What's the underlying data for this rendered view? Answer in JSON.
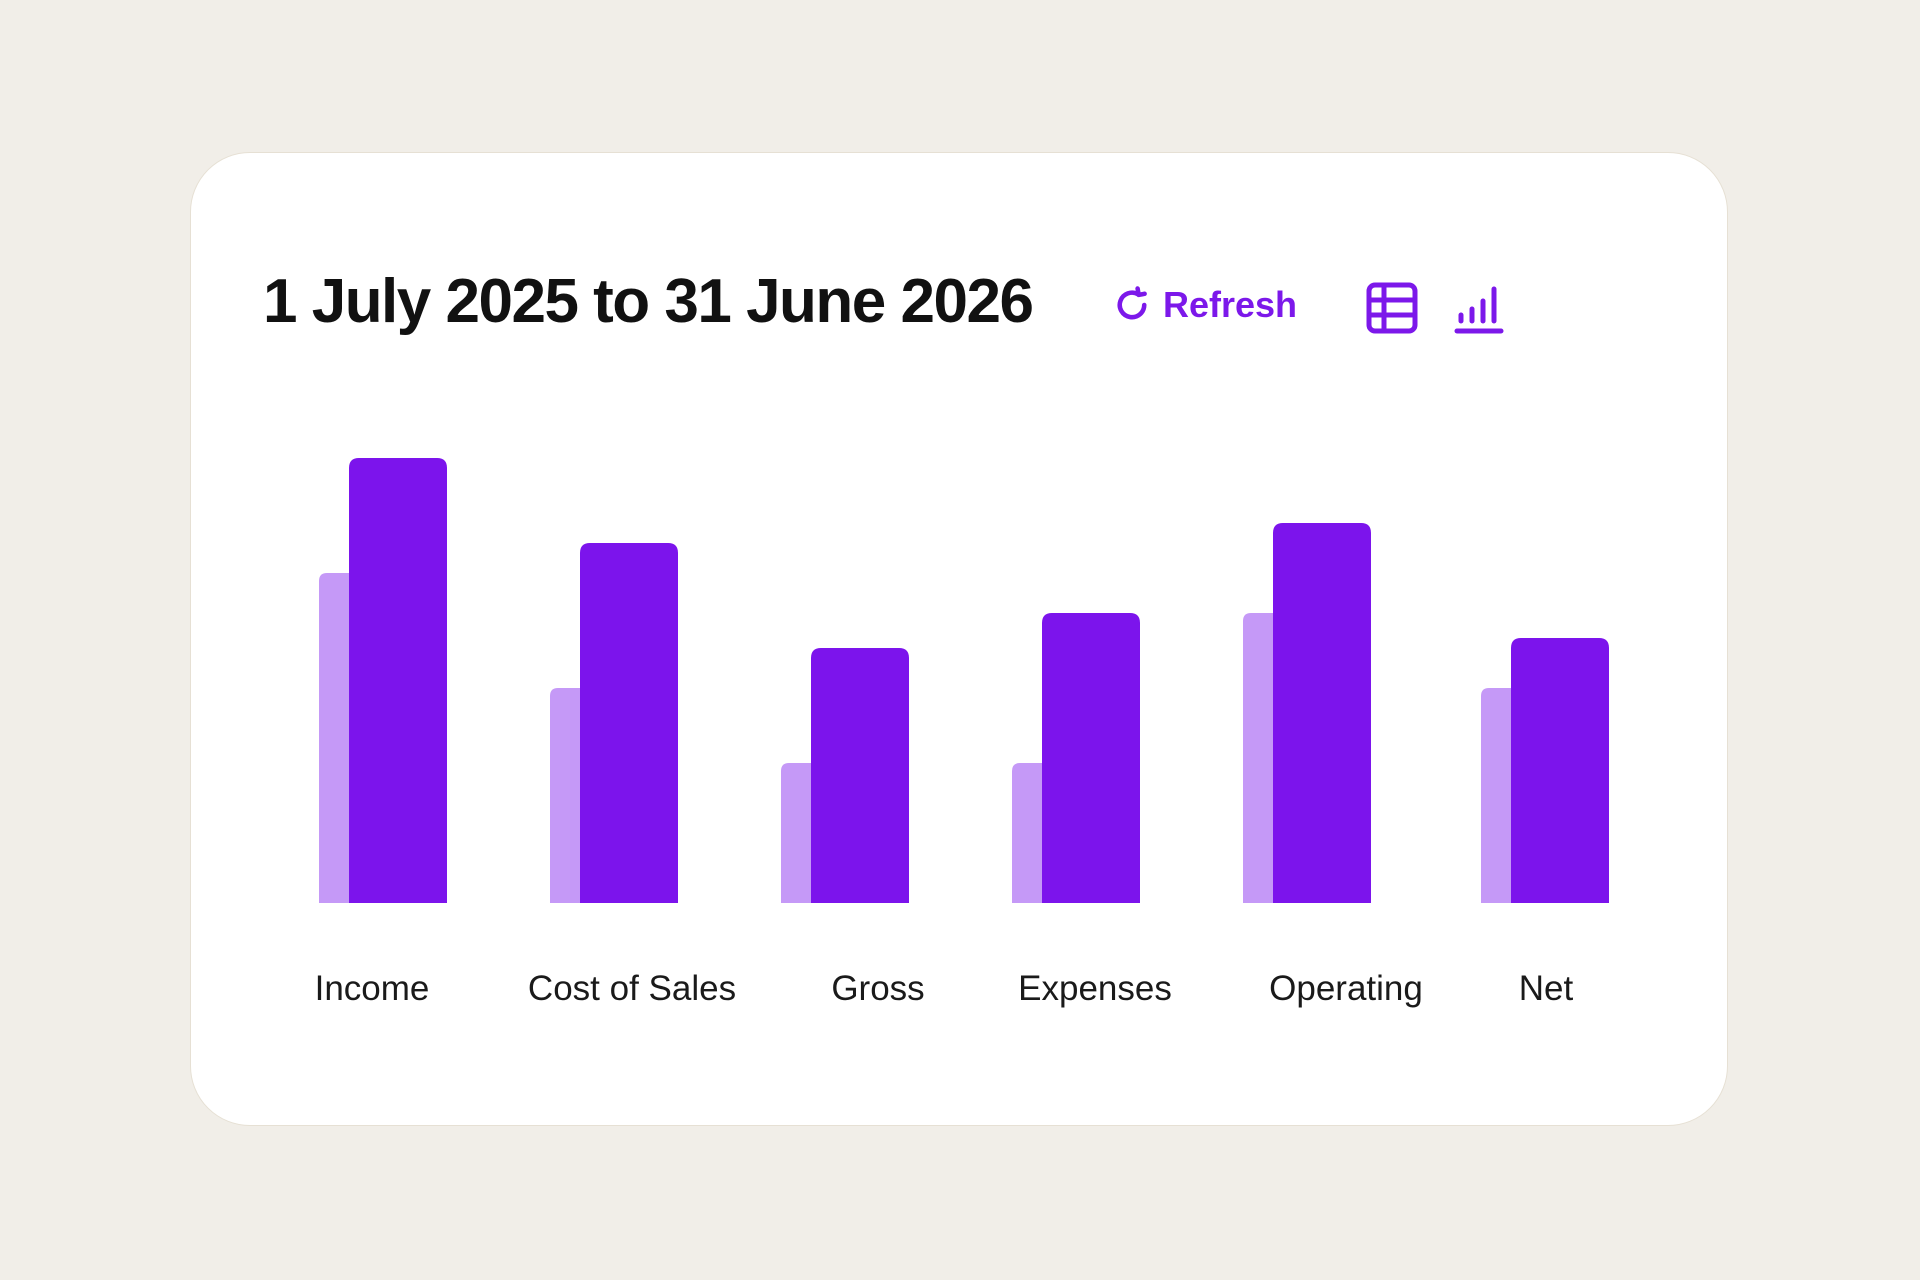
{
  "header": {
    "title": "1 July 2025 to 31 June 2026",
    "refresh_label": "Refresh"
  },
  "toolbar": {
    "table_view_icon": "table-icon",
    "chart_view_icon": "bar-chart-icon"
  },
  "colors": {
    "primary": "#7c14ec",
    "secondary": "#c599f7",
    "page_background": "#f1eee8",
    "card_background": "#ffffff"
  },
  "chart_data": {
    "type": "bar",
    "categories": [
      "Income",
      "Cost of Sales",
      "Gross",
      "Expenses",
      "Operating",
      "Net"
    ],
    "series": [
      {
        "values": [
          66,
          43,
          28,
          28,
          58,
          43
        ]
      },
      {
        "values": [
          89,
          72,
          51,
          58,
          76,
          53
        ]
      }
    ],
    "ylim": [
      0,
      100
    ],
    "grid": false,
    "legend": "none"
  }
}
